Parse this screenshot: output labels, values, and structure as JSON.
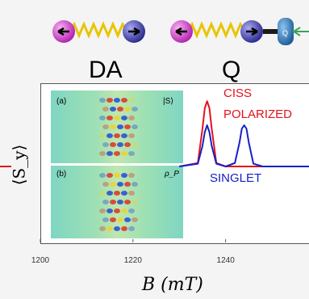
{
  "header": {
    "left_label": "DA",
    "right_label": "Q"
  },
  "molecule": {
    "quencher_label": "Q"
  },
  "panels": [
    {
      "id": "a",
      "tag": "(a)",
      "corner": "|S⟩"
    },
    {
      "id": "b",
      "tag": "(b)",
      "corner": "ρ_P"
    }
  ],
  "colors": {
    "ciss": "#e3121b",
    "singlet": "#1720c8",
    "donor": "#d441d0",
    "acceptor": "#3a3aa8",
    "spring": "#e8c500",
    "quencher": "#2a6fb0",
    "link": "#3aa35a"
  },
  "chart_data": {
    "type": "line",
    "xlabel": "B (mT)",
    "ylabel": "⟨S_y⟩",
    "xticks": [
      1200,
      1220,
      1240
    ],
    "xlim": [
      1200,
      1258
    ],
    "series": [
      {
        "name": "CISS POLARIZED",
        "color": "#e3121b",
        "x": [
          1230,
          1234,
          1235,
          1235.5,
          1236,
          1236.5,
          1237,
          1238,
          1240,
          1258
        ],
        "y": [
          0,
          0.05,
          0.55,
          0.85,
          0.95,
          0.85,
          0.55,
          0.05,
          0,
          0
        ]
      },
      {
        "name": "SINGLET",
        "color": "#1720c8",
        "x": [
          1230,
          1234,
          1235,
          1235.5,
          1236,
          1236.5,
          1237,
          1238,
          1240,
          1242,
          1243,
          1243.5,
          1244,
          1244.5,
          1245,
          1246,
          1248,
          1258
        ],
        "y": [
          0,
          0.04,
          0.3,
          0.5,
          0.6,
          0.5,
          0.3,
          0.04,
          0,
          0.05,
          0.35,
          0.55,
          0.6,
          0.55,
          0.35,
          0.04,
          0,
          0
        ]
      }
    ]
  }
}
